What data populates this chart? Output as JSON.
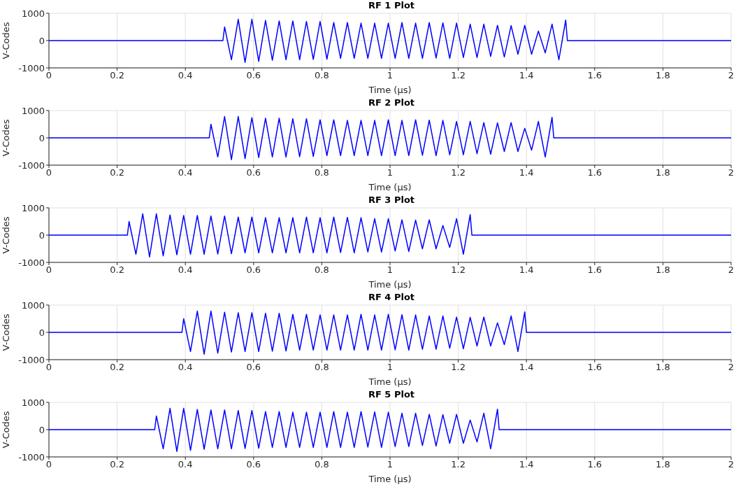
{
  "chart_data": [
    {
      "type": "line",
      "title": "RF 1 Plot",
      "xlabel": "Time (μs)",
      "ylabel": "V-Codes",
      "xlim": [
        0,
        2
      ],
      "xticks": [
        0,
        0.2,
        0.4,
        0.6,
        0.8,
        1,
        1.2,
        1.4,
        1.6,
        1.8,
        2
      ],
      "ylim": [
        -1000,
        1000
      ],
      "yticks": [
        -1000,
        0,
        1000
      ],
      "grid": true,
      "series": [
        {
          "color": "#0000ff",
          "x": [
            0,
            0.51,
            0.515,
            0.535,
            0.555,
            0.575,
            0.595,
            0.615,
            0.635,
            0.655,
            0.675,
            0.695,
            0.715,
            0.735,
            0.755,
            0.775,
            0.795,
            0.815,
            0.835,
            0.855,
            0.875,
            0.895,
            0.915,
            0.935,
            0.955,
            0.975,
            0.995,
            1.015,
            1.035,
            1.055,
            1.075,
            1.095,
            1.115,
            1.135,
            1.155,
            1.175,
            1.195,
            1.215,
            1.235,
            1.255,
            1.275,
            1.295,
            1.315,
            1.335,
            1.355,
            1.375,
            1.395,
            1.415,
            1.435,
            1.455,
            1.475,
            1.495,
            1.515,
            1.52,
            2
          ],
          "values": [
            0,
            0,
            500,
            -700,
            780,
            -800,
            780,
            -760,
            740,
            -720,
            720,
            -700,
            720,
            -700,
            700,
            -690,
            700,
            -680,
            660,
            -650,
            660,
            -650,
            640,
            -650,
            640,
            -650,
            640,
            -650,
            660,
            -650,
            640,
            -650,
            660,
            -640,
            650,
            -650,
            640,
            -620,
            600,
            -620,
            600,
            -580,
            560,
            -600,
            550,
            -500,
            560,
            -500,
            350,
            -450,
            600,
            -700,
            750,
            0,
            0
          ]
        }
      ]
    },
    {
      "type": "line",
      "title": "RF 2 Plot",
      "xlabel": "Time (μs)",
      "ylabel": "V-Codes",
      "xlim": [
        0,
        2
      ],
      "xticks": [
        0,
        0.2,
        0.4,
        0.6,
        0.8,
        1,
        1.2,
        1.4,
        1.6,
        1.8,
        2
      ],
      "ylim": [
        -1000,
        1000
      ],
      "yticks": [
        -1000,
        0,
        1000
      ],
      "grid": true,
      "series": [
        {
          "color": "#0000ff",
          "x": [
            0,
            0.47,
            0.475,
            0.495,
            0.515,
            0.535,
            0.555,
            0.575,
            0.595,
            0.615,
            0.635,
            0.655,
            0.675,
            0.695,
            0.715,
            0.735,
            0.755,
            0.775,
            0.795,
            0.815,
            0.835,
            0.855,
            0.875,
            0.895,
            0.915,
            0.935,
            0.955,
            0.975,
            0.995,
            1.015,
            1.035,
            1.055,
            1.075,
            1.095,
            1.115,
            1.135,
            1.155,
            1.175,
            1.195,
            1.215,
            1.235,
            1.255,
            1.275,
            1.295,
            1.315,
            1.335,
            1.355,
            1.375,
            1.395,
            1.415,
            1.435,
            1.455,
            1.475,
            1.48,
            2
          ],
          "values": [
            0,
            0,
            500,
            -700,
            780,
            -800,
            780,
            -760,
            740,
            -720,
            720,
            -700,
            720,
            -700,
            700,
            -690,
            700,
            -680,
            660,
            -650,
            660,
            -650,
            640,
            -650,
            640,
            -650,
            640,
            -650,
            660,
            -650,
            640,
            -650,
            660,
            -640,
            650,
            -650,
            640,
            -620,
            600,
            -620,
            600,
            -580,
            560,
            -600,
            550,
            -500,
            560,
            -500,
            350,
            -450,
            600,
            -700,
            750,
            0,
            0
          ]
        }
      ]
    },
    {
      "type": "line",
      "title": "RF 3 Plot",
      "xlabel": "Time (μs)",
      "ylabel": "V-Codes",
      "xlim": [
        0,
        2
      ],
      "xticks": [
        0,
        0.2,
        0.4,
        0.6,
        0.8,
        1,
        1.2,
        1.4,
        1.6,
        1.8,
        2
      ],
      "ylim": [
        -1000,
        1000
      ],
      "yticks": [
        -1000,
        0,
        1000
      ],
      "grid": true,
      "series": [
        {
          "color": "#0000ff",
          "x": [
            0,
            0.23,
            0.235,
            0.255,
            0.275,
            0.295,
            0.315,
            0.335,
            0.355,
            0.375,
            0.395,
            0.415,
            0.435,
            0.455,
            0.475,
            0.495,
            0.515,
            0.535,
            0.555,
            0.575,
            0.595,
            0.615,
            0.635,
            0.655,
            0.675,
            0.695,
            0.715,
            0.735,
            0.755,
            0.775,
            0.795,
            0.815,
            0.835,
            0.855,
            0.875,
            0.895,
            0.915,
            0.935,
            0.955,
            0.975,
            0.995,
            1.015,
            1.035,
            1.055,
            1.075,
            1.095,
            1.115,
            1.135,
            1.155,
            1.175,
            1.195,
            1.215,
            1.235,
            1.24,
            2
          ],
          "values": [
            0,
            0,
            500,
            -700,
            780,
            -800,
            780,
            -760,
            740,
            -720,
            720,
            -700,
            720,
            -700,
            700,
            -690,
            700,
            -680,
            660,
            -650,
            660,
            -650,
            640,
            -650,
            640,
            -650,
            640,
            -650,
            660,
            -650,
            640,
            -650,
            660,
            -640,
            650,
            -650,
            640,
            -620,
            600,
            -620,
            600,
            -580,
            560,
            -600,
            550,
            -500,
            560,
            -500,
            350,
            -450,
            600,
            -700,
            750,
            0,
            0
          ]
        }
      ]
    },
    {
      "type": "line",
      "title": "RF 4 Plot",
      "xlabel": "Time (μs)",
      "ylabel": "V-Codes",
      "xlim": [
        0,
        2
      ],
      "xticks": [
        0,
        0.2,
        0.4,
        0.6,
        0.8,
        1,
        1.2,
        1.4,
        1.6,
        1.8,
        2
      ],
      "ylim": [
        -1000,
        1000
      ],
      "yticks": [
        -1000,
        0,
        1000
      ],
      "grid": true,
      "series": [
        {
          "color": "#0000ff",
          "x": [
            0,
            0.39,
            0.395,
            0.415,
            0.435,
            0.455,
            0.475,
            0.495,
            0.515,
            0.535,
            0.555,
            0.575,
            0.595,
            0.615,
            0.635,
            0.655,
            0.675,
            0.695,
            0.715,
            0.735,
            0.755,
            0.775,
            0.795,
            0.815,
            0.835,
            0.855,
            0.875,
            0.895,
            0.915,
            0.935,
            0.955,
            0.975,
            0.995,
            1.015,
            1.035,
            1.055,
            1.075,
            1.095,
            1.115,
            1.135,
            1.155,
            1.175,
            1.195,
            1.215,
            1.235,
            1.255,
            1.275,
            1.295,
            1.315,
            1.335,
            1.355,
            1.375,
            1.395,
            1.4,
            2
          ],
          "values": [
            0,
            0,
            500,
            -700,
            780,
            -800,
            780,
            -760,
            740,
            -720,
            720,
            -700,
            720,
            -700,
            700,
            -690,
            700,
            -680,
            660,
            -650,
            660,
            -650,
            640,
            -650,
            640,
            -650,
            640,
            -650,
            660,
            -650,
            640,
            -650,
            660,
            -640,
            650,
            -650,
            640,
            -620,
            600,
            -620,
            600,
            -580,
            560,
            -600,
            550,
            -500,
            560,
            -500,
            350,
            -450,
            600,
            -700,
            750,
            0,
            0
          ]
        }
      ]
    },
    {
      "type": "line",
      "title": "RF 5 Plot",
      "xlabel": "Time (μs)",
      "ylabel": "V-Codes",
      "xlim": [
        0,
        2
      ],
      "xticks": [
        0,
        0.2,
        0.4,
        0.6,
        0.8,
        1,
        1.2,
        1.4,
        1.6,
        1.8,
        2
      ],
      "ylim": [
        -1000,
        1000
      ],
      "yticks": [
        -1000,
        0,
        1000
      ],
      "grid": true,
      "series": [
        {
          "color": "#0000ff",
          "x": [
            0,
            0.31,
            0.315,
            0.335,
            0.355,
            0.375,
            0.395,
            0.415,
            0.435,
            0.455,
            0.475,
            0.495,
            0.515,
            0.535,
            0.555,
            0.575,
            0.595,
            0.615,
            0.635,
            0.655,
            0.675,
            0.695,
            0.715,
            0.735,
            0.755,
            0.775,
            0.795,
            0.815,
            0.835,
            0.855,
            0.875,
            0.895,
            0.915,
            0.935,
            0.955,
            0.975,
            0.995,
            1.015,
            1.035,
            1.055,
            1.075,
            1.095,
            1.115,
            1.135,
            1.155,
            1.175,
            1.195,
            1.215,
            1.235,
            1.255,
            1.275,
            1.295,
            1.315,
            1.32,
            2
          ],
          "values": [
            0,
            0,
            500,
            -700,
            780,
            -800,
            780,
            -760,
            740,
            -720,
            720,
            -700,
            720,
            -700,
            700,
            -690,
            700,
            -680,
            660,
            -650,
            660,
            -650,
            640,
            -650,
            640,
            -650,
            640,
            -650,
            660,
            -650,
            640,
            -650,
            660,
            -640,
            650,
            -650,
            640,
            -620,
            600,
            -620,
            600,
            -580,
            560,
            -600,
            550,
            -500,
            560,
            -500,
            350,
            -450,
            600,
            -700,
            750,
            0,
            0
          ]
        }
      ]
    }
  ]
}
